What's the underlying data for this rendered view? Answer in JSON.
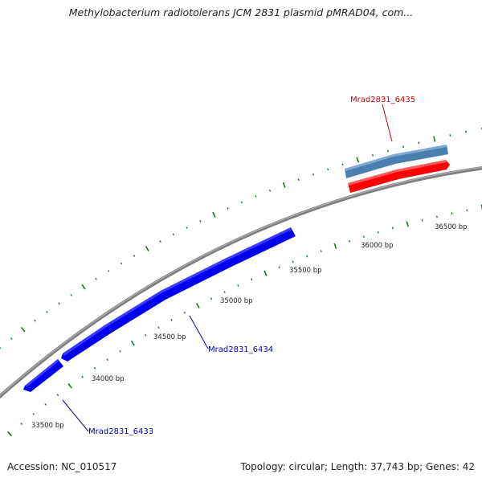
{
  "header": {
    "title": "Methylobacterium radiotolerans JCM 2831 plasmid pMRAD04, com..."
  },
  "footer": {
    "accession": "Accession: NC_010517",
    "summary": "Topology: circular; Length: 37,743 bp; Genes: 42"
  },
  "colors": {
    "backbone": "#7f7f7f",
    "tick": "#1a7a1a",
    "forward_gene": "#0000ee",
    "forward_label": "#0000aa",
    "reverse_gene": "#ff0000",
    "reverse_label": "#cc0000",
    "cds_bar": "#4a7fb0"
  },
  "position_labels": [
    "33500 bp",
    "34000 bp",
    "34500 bp",
    "35000 bp",
    "35500 bp",
    "36000 bp",
    "36500 bp"
  ],
  "gene_labels": {
    "g6433": "Mrad2831_6433",
    "g6434": "Mrad2831_6434",
    "g6435": "Mrad2831_6435"
  }
}
